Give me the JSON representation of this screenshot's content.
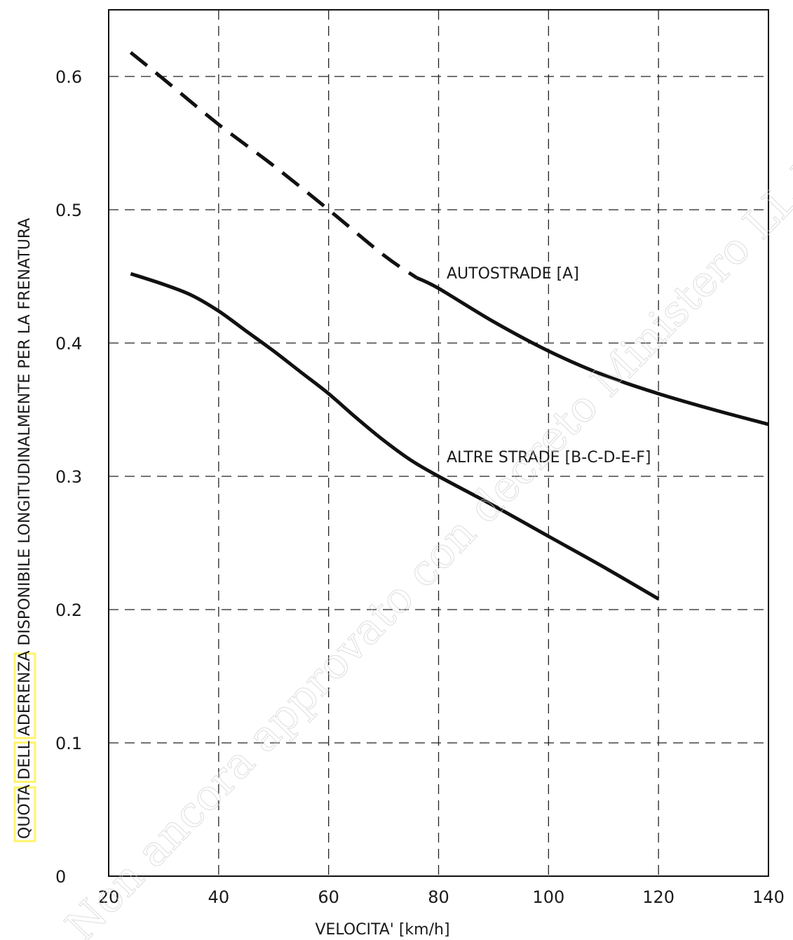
{
  "chart_data": {
    "type": "line",
    "title": "",
    "xlabel": "VELOCITA' [km/h]",
    "ylabel": "QUOTA DELL ADERENZA DISPONIBILE LONGITUDINALMENTE PER LA FRENATURA",
    "ylabel_highlights": [
      "QUOTA",
      "DELL",
      "ADERENZA"
    ],
    "highlight_color": "#fff36b",
    "xlim": [
      20,
      140
    ],
    "ylim": [
      0,
      0.65
    ],
    "xticks": [
      20,
      40,
      60,
      80,
      100,
      120,
      140
    ],
    "xtick_labels": [
      "20",
      "40",
      "60",
      "80",
      "100",
      "120",
      "140"
    ],
    "yticks": [
      0,
      0.1,
      0.2,
      0.3,
      0.4,
      0.5,
      0.6
    ],
    "ytick_labels": [
      "0",
      "0.1",
      "0.2",
      "0.3",
      "0.4",
      "0.5",
      "0.6"
    ],
    "grid": true,
    "series": [
      {
        "name": "AUTOSTRADE [A]",
        "dashed_until_x": 76,
        "x": [
          24,
          30,
          40,
          50,
          60,
          70,
          76,
          80,
          90,
          100,
          110,
          120,
          130,
          140
        ],
        "y": [
          0.618,
          0.598,
          0.564,
          0.533,
          0.5,
          0.466,
          0.449,
          0.441,
          0.416,
          0.394,
          0.376,
          0.362,
          0.35,
          0.339
        ]
      },
      {
        "name": "ALTRE STRADE [B-C-D-E-F]",
        "x": [
          24,
          30,
          35,
          40,
          45,
          50,
          55,
          60,
          65,
          70,
          75,
          80,
          90,
          100,
          110,
          120
        ],
        "y": [
          0.452,
          0.444,
          0.436,
          0.424,
          0.409,
          0.394,
          0.378,
          0.362,
          0.344,
          0.327,
          0.312,
          0.3,
          0.278,
          0.255,
          0.232,
          0.208
        ]
      }
    ],
    "watermark": "Non ancora approvato con decreto Ministero LL.PP."
  }
}
